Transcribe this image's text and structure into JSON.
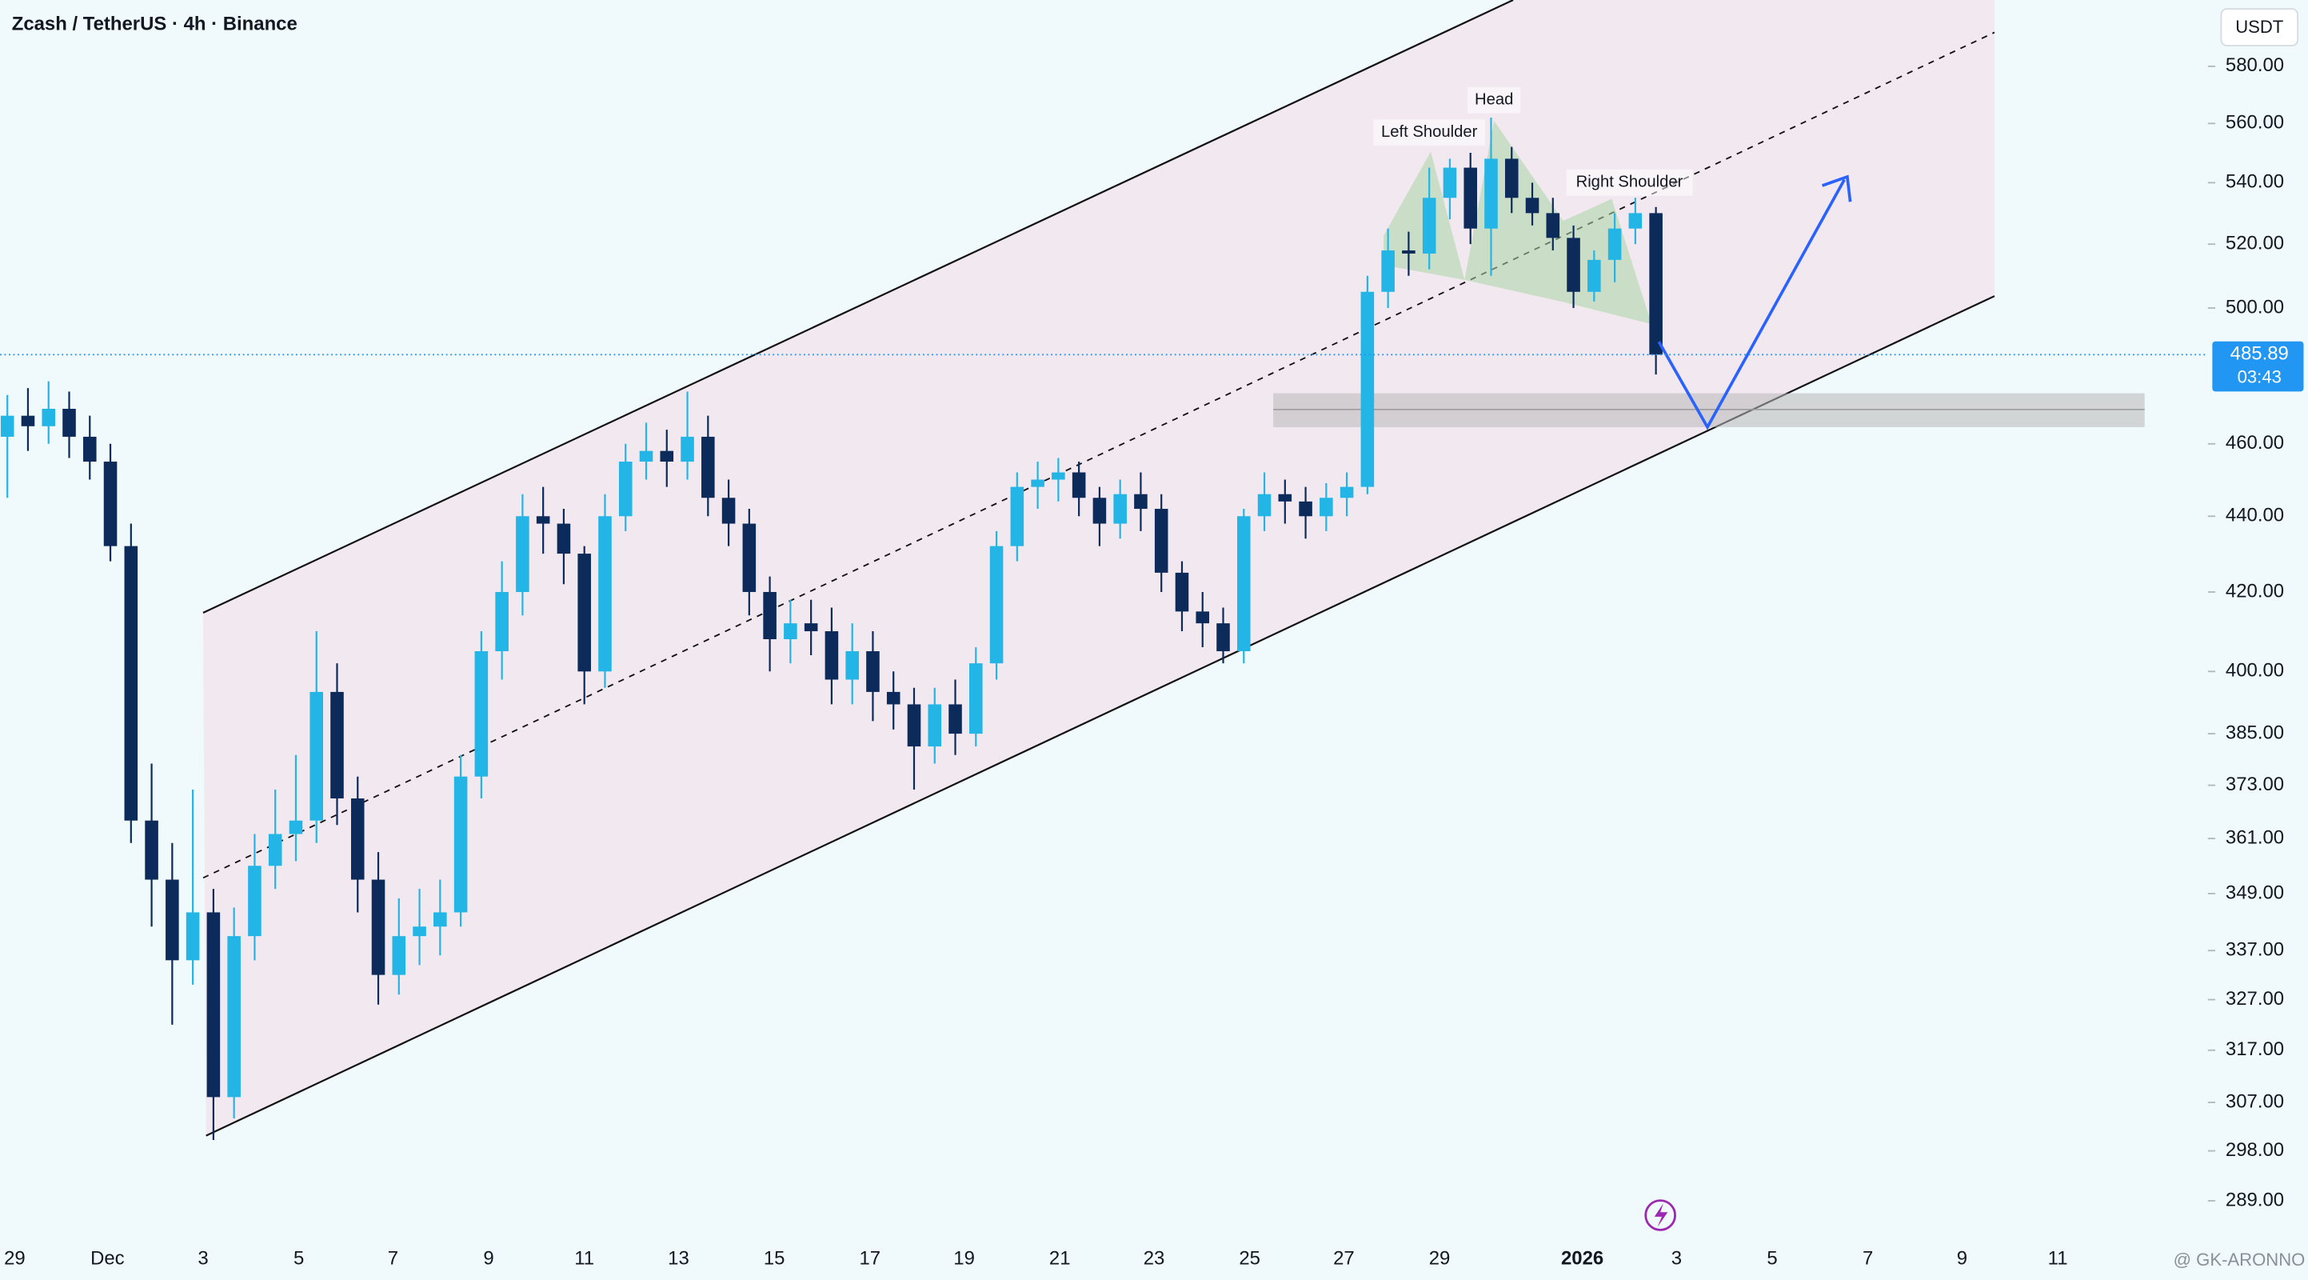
{
  "chart_data": {
    "type": "candlestick",
    "title": "Zcash / TetherUS · 4h · Binance",
    "currency": "USDT",
    "log_scale": true,
    "up_color": "#22b5e6",
    "down_color": "#0c2b5b",
    "series": {
      "open": [
        462,
        468,
        465,
        470,
        462,
        455,
        432,
        365,
        352,
        335,
        345,
        308,
        340,
        355,
        362,
        365,
        395,
        370,
        352,
        332,
        340,
        342,
        345,
        375,
        405,
        420,
        440,
        438,
        430,
        400,
        440,
        455,
        458,
        455,
        462,
        445,
        438,
        420,
        408,
        412,
        410,
        398,
        405,
        395,
        392,
        382,
        392,
        385,
        402,
        432,
        448,
        450,
        452,
        445,
        438,
        446,
        442,
        425,
        415,
        412,
        405,
        440,
        446,
        444,
        440,
        445,
        448,
        505,
        518,
        517,
        535,
        545,
        525,
        548,
        535,
        530,
        522,
        505,
        515,
        525,
        530
      ],
      "high": [
        474,
        476,
        478,
        475,
        468,
        460,
        438,
        378,
        360,
        372,
        350,
        346,
        362,
        372,
        380,
        410,
        402,
        375,
        358,
        348,
        350,
        352,
        380,
        410,
        428,
        446,
        448,
        442,
        432,
        446,
        460,
        466,
        464,
        475,
        468,
        450,
        442,
        424,
        418,
        418,
        416,
        412,
        410,
        400,
        396,
        396,
        398,
        406,
        436,
        452,
        455,
        456,
        455,
        448,
        450,
        452,
        446,
        428,
        420,
        416,
        442,
        452,
        450,
        448,
        449,
        452,
        510,
        525,
        524,
        545,
        548,
        550,
        562,
        552,
        540,
        535,
        526,
        518,
        530,
        535,
        532
      ],
      "low": [
        445,
        458,
        460,
        456,
        450,
        428,
        360,
        342,
        322,
        330,
        300,
        304,
        335,
        350,
        356,
        360,
        364,
        345,
        326,
        328,
        334,
        336,
        342,
        370,
        398,
        414,
        430,
        422,
        392,
        396,
        436,
        450,
        448,
        450,
        440,
        432,
        414,
        400,
        402,
        404,
        392,
        392,
        388,
        386,
        372,
        378,
        380,
        382,
        398,
        428,
        442,
        444,
        440,
        432,
        434,
        436,
        420,
        410,
        406,
        402,
        402,
        436,
        438,
        434,
        436,
        440,
        446,
        500,
        510,
        512,
        528,
        520,
        510,
        530,
        526,
        518,
        500,
        502,
        508,
        520,
        480
      ],
      "close": [
        468,
        465,
        470,
        462,
        455,
        432,
        365,
        352,
        335,
        345,
        308,
        340,
        355,
        362,
        365,
        395,
        370,
        352,
        332,
        340,
        342,
        345,
        375,
        405,
        420,
        440,
        438,
        430,
        400,
        440,
        455,
        458,
        455,
        462,
        445,
        438,
        420,
        408,
        412,
        410,
        398,
        405,
        395,
        392,
        382,
        392,
        385,
        402,
        432,
        448,
        450,
        452,
        445,
        438,
        446,
        442,
        425,
        415,
        412,
        405,
        440,
        446,
        444,
        440,
        445,
        448,
        505,
        518,
        517,
        535,
        545,
        525,
        548,
        535,
        530,
        522,
        505,
        515,
        525,
        530,
        485.89
      ]
    },
    "ylim": [
      282.6,
      604.1
    ],
    "yticks": [
      {
        "value": 580,
        "label": "580.00"
      },
      {
        "value": 560,
        "label": "560.00"
      },
      {
        "value": 540,
        "label": "540.00"
      },
      {
        "value": 520,
        "label": "520.00"
      },
      {
        "value": 500,
        "label": "500.00"
      },
      {
        "value": 460,
        "label": "460.00"
      },
      {
        "value": 440,
        "label": "440.00"
      },
      {
        "value": 420,
        "label": "420.00"
      },
      {
        "value": 400,
        "label": "400.00"
      },
      {
        "value": 385,
        "label": "385.00"
      },
      {
        "value": 373,
        "label": "373.00"
      },
      {
        "value": 361,
        "label": "361.00"
      },
      {
        "value": 349,
        "label": "349.00"
      },
      {
        "value": 337,
        "label": "337.00"
      },
      {
        "value": 327,
        "label": "327.00"
      },
      {
        "value": 317,
        "label": "317.00"
      },
      {
        "value": 307,
        "label": "307.00"
      },
      {
        "value": 298,
        "label": "298.00"
      },
      {
        "value": 289,
        "label": "289.00"
      }
    ],
    "x_labels": [
      "29",
      "Dec",
      "3",
      "5",
      "7",
      "9",
      "11",
      "13",
      "15",
      "17",
      "19",
      "21",
      "23",
      "25",
      "27",
      "29",
      "2026",
      "3",
      "5",
      "7",
      "9",
      "11"
    ],
    "countdown": "03:43",
    "annotations": [
      "Left Shoulder",
      "Head",
      "Right Shoulder"
    ],
    "watermark": "@ GK-ARONNO"
  }
}
